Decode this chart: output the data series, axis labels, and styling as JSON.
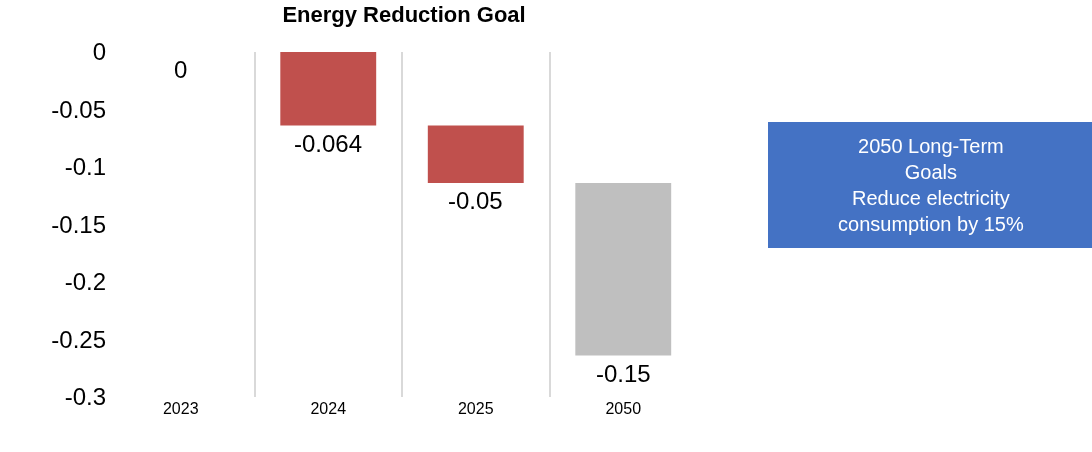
{
  "chart_data": {
    "type": "bar",
    "title": "Energy Reduction Goal",
    "categories": [
      "2023",
      "2024",
      "2025",
      "2050"
    ],
    "values": [
      0,
      -0.064,
      -0.05,
      -0.15
    ],
    "base": [
      null,
      0,
      -0.064,
      -0.114
    ],
    "colors": [
      "#9dc3e6",
      "#c0504d",
      "#c0504d",
      "#bfbfbf"
    ],
    "ylim": [
      -0.3,
      0
    ],
    "yticks": [
      0,
      -0.05,
      -0.1,
      -0.15,
      -0.2,
      -0.25,
      -0.3
    ],
    "grid": "x",
    "data_labels": true,
    "annotations": [
      "2050 Long-Term\nGoals\nReduce electricity\nconsumption by 15%"
    ]
  }
}
